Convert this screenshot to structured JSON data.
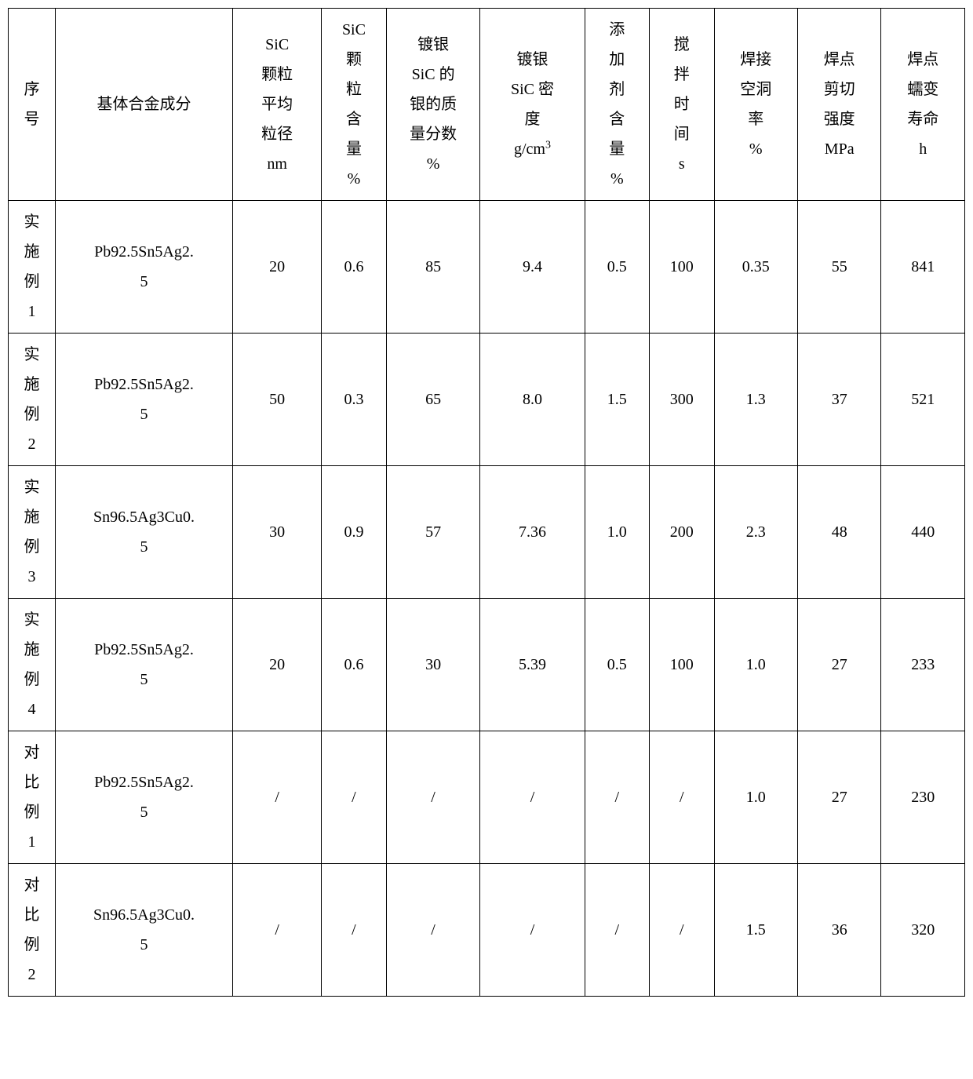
{
  "table": {
    "columns": [
      {
        "header": "序号",
        "width": "4.5%"
      },
      {
        "header": "基体合金成分",
        "width": "17%"
      },
      {
        "header": "SiC 颗粒平均粒径 nm",
        "width": "8.5%"
      },
      {
        "header": "SiC 颗粒含量 %",
        "width": "6.2%"
      },
      {
        "header": "镀银 SiC 的银的质量分数 %",
        "width": "9%"
      },
      {
        "header": "镀银 SiC 密度 g/cm³",
        "width": "10%"
      },
      {
        "header": "添加剂含量 %",
        "width": "6.2%"
      },
      {
        "header": "搅拌时间 s",
        "width": "6.2%"
      },
      {
        "header": "焊接空洞率 %",
        "width": "8%"
      },
      {
        "header": "焊点剪切强度 MPa",
        "width": "8%"
      },
      {
        "header": "焊点蠕变寿命 h",
        "width": "8%"
      }
    ],
    "header_lines": {
      "c0": [
        "序",
        "号"
      ],
      "c1": [
        "基体合金成分"
      ],
      "c2": [
        "SiC",
        "颗粒",
        "平均",
        "粒径",
        "nm"
      ],
      "c3": [
        "SiC",
        "颗",
        "粒",
        "含",
        "量",
        "%"
      ],
      "c4": [
        "镀银",
        "SiC 的",
        "银的质",
        "量分数",
        "%"
      ],
      "c5_pre": "镀银",
      "c5_mid": "SiC 密",
      "c5_mid2": "度",
      "c5_unit_base": "g/cm",
      "c5_unit_sup": "3",
      "c6": [
        "添",
        "加",
        "剂",
        "含",
        "量",
        "%"
      ],
      "c7": [
        "搅",
        "拌",
        "时",
        "间",
        "s"
      ],
      "c8": [
        "焊接",
        "空洞",
        "率",
        "%"
      ],
      "c9": [
        "焊点",
        "剪切",
        "强度",
        "MPa"
      ],
      "c10": [
        "焊点",
        "蠕变",
        "寿命",
        "h"
      ]
    },
    "rows": [
      {
        "label_lines": [
          "实",
          "施",
          "例",
          "1"
        ],
        "alloy_lines": [
          "Pb92.5Sn5Ag2.",
          "5"
        ],
        "sic_size": "20",
        "sic_content": "0.6",
        "ag_fraction": "85",
        "density": "9.4",
        "additive": "0.5",
        "stir_time": "100",
        "void_rate": "0.35",
        "shear": "55",
        "creep": "841"
      },
      {
        "label_lines": [
          "实",
          "施",
          "例",
          "2"
        ],
        "alloy_lines": [
          "Pb92.5Sn5Ag2.",
          "5"
        ],
        "sic_size": "50",
        "sic_content": "0.3",
        "ag_fraction": "65",
        "density": "8.0",
        "additive": "1.5",
        "stir_time": "300",
        "void_rate": "1.3",
        "shear": "37",
        "creep": "521"
      },
      {
        "label_lines": [
          "实",
          "施",
          "例",
          "3"
        ],
        "alloy_lines": [
          "Sn96.5Ag3Cu0.",
          "5"
        ],
        "sic_size": "30",
        "sic_content": "0.9",
        "ag_fraction": "57",
        "density": "7.36",
        "additive": "1.0",
        "stir_time": "200",
        "void_rate": "2.3",
        "shear": "48",
        "creep": "440"
      },
      {
        "label_lines": [
          "实",
          "施",
          "例",
          "4"
        ],
        "alloy_lines": [
          "Pb92.5Sn5Ag2.",
          "5"
        ],
        "sic_size": "20",
        "sic_content": "0.6",
        "ag_fraction": "30",
        "density": "5.39",
        "additive": "0.5",
        "stir_time": "100",
        "void_rate": "1.0",
        "shear": "27",
        "creep": "233"
      },
      {
        "label_lines": [
          "对",
          "比",
          "例",
          "1"
        ],
        "alloy_lines": [
          "Pb92.5Sn5Ag2.",
          "5"
        ],
        "sic_size": "/",
        "sic_content": "/",
        "ag_fraction": "/",
        "density": "/",
        "additive": "/",
        "stir_time": "/",
        "void_rate": "1.0",
        "shear": "27",
        "creep": "230"
      },
      {
        "label_lines": [
          "对",
          "比",
          "例",
          "2"
        ],
        "alloy_lines": [
          "Sn96.5Ag3Cu0.",
          "5"
        ],
        "sic_size": "/",
        "sic_content": "/",
        "ag_fraction": "/",
        "density": "/",
        "additive": "/",
        "stir_time": "/",
        "void_rate": "1.5",
        "shear": "36",
        "creep": "320"
      }
    ],
    "border_color": "#000000",
    "background_color": "#ffffff",
    "font_size": 20,
    "line_height": 1.9
  }
}
